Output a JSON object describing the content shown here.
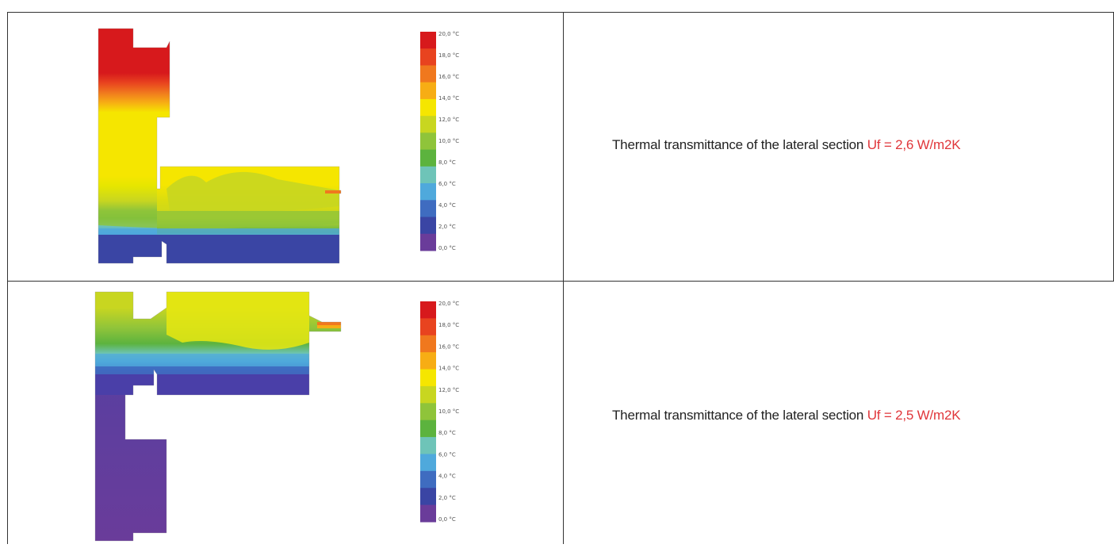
{
  "rows": [
    {
      "caption": "Thermal transmittance of the lateral section",
      "value": "Uf = 2,6 W/m2K"
    },
    {
      "caption": "Thermal transmittance of the lateral section",
      "value": "Uf = 2,5 W/m2K"
    }
  ],
  "legend": {
    "labels": [
      "20,0 °C",
      "18,0 °C",
      "16,0 °C",
      "14,0 °C",
      "12,0 °C",
      "10,0 °C",
      "8,0 °C",
      "6,0 °C",
      "4,0 °C",
      "2,0 °C",
      "0,0 °C"
    ],
    "colors": [
      "#d7191c",
      "#e8431f",
      "#f0781e",
      "#f7ad14",
      "#f5e600",
      "#c8d620",
      "#8fc43a",
      "#5cb33e",
      "#6ec4b8",
      "#4fa9dc",
      "#3f6cc0",
      "#3a45a4",
      "#6a3c9a"
    ]
  }
}
